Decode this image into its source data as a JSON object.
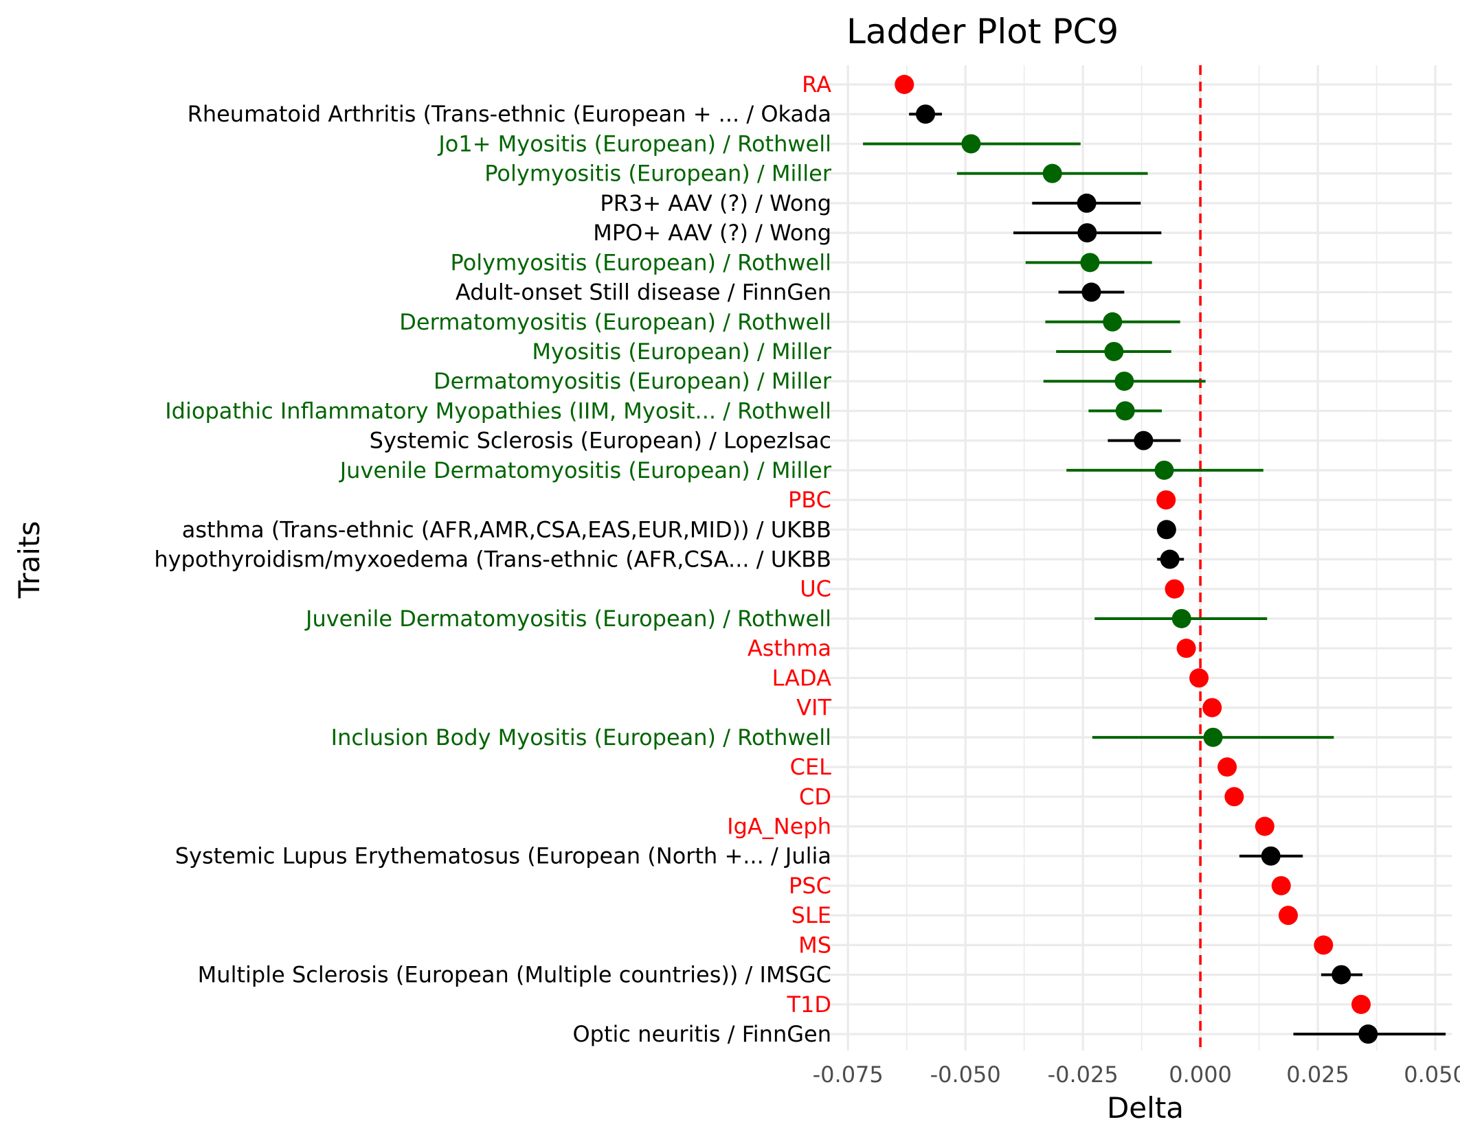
{
  "chart_data": {
    "type": "scatter",
    "title": "Ladder Plot PC9",
    "xlabel": "Delta",
    "ylabel": "Traits",
    "xlim": [
      -0.08,
      0.0535
    ],
    "x_ticks": [
      -0.075,
      -0.05,
      -0.025,
      0.0,
      0.025,
      0.05
    ],
    "x_tick_labels": [
      "-0.075",
      "-0.050",
      "-0.025",
      "0.000",
      "0.025",
      "0.050"
    ],
    "reference_line": {
      "x": 0.0,
      "style": "dashed",
      "color": "#ff0000"
    },
    "grid": true,
    "legend": "none",
    "colors": {
      "red": "#ff0000",
      "green": "#006400",
      "black": "#000000"
    },
    "points": [
      {
        "label": "RA",
        "x": -0.063,
        "lo": null,
        "hi": null,
        "color": "#ff0000"
      },
      {
        "label": "Rheumatoid Arthritis (Trans-ethnic (European + ... / Okada",
        "x": -0.0585,
        "lo": -0.062,
        "hi": -0.055,
        "color": "#000000"
      },
      {
        "label": "Jo1+ Myositis (European) / Rothwell",
        "x": -0.0488,
        "lo": -0.0718,
        "hi": -0.0255,
        "color": "#006400"
      },
      {
        "label": "Polymyositis (European) / Miller",
        "x": -0.0315,
        "lo": -0.0518,
        "hi": -0.0112,
        "color": "#006400"
      },
      {
        "label": "PR3+ AAV (?) / Wong",
        "x": -0.0242,
        "lo": -0.0358,
        "hi": -0.0127,
        "color": "#000000"
      },
      {
        "label": "MPO+ AAV (?) / Wong",
        "x": -0.0241,
        "lo": -0.0398,
        "hi": -0.0083,
        "color": "#000000"
      },
      {
        "label": "Polymyositis (European) / Rothwell",
        "x": -0.0235,
        "lo": -0.0372,
        "hi": -0.0103,
        "color": "#006400"
      },
      {
        "label": "Adult-onset Still disease / FinnGen",
        "x": -0.0232,
        "lo": -0.0302,
        "hi": -0.0162,
        "color": "#000000"
      },
      {
        "label": "Dermatomyositis (European) / Rothwell",
        "x": -0.0187,
        "lo": -0.033,
        "hi": -0.0043,
        "color": "#006400"
      },
      {
        "label": "Myositis (European) / Miller",
        "x": -0.0184,
        "lo": -0.0307,
        "hi": -0.0062,
        "color": "#006400"
      },
      {
        "label": "Dermatomyositis (European) / Miller",
        "x": -0.0162,
        "lo": -0.0334,
        "hi": 0.0011,
        "color": "#006400"
      },
      {
        "label": "Idiopathic Inflammatory Myopathies (IIM, Myosit... / Rothwell",
        "x": -0.016,
        "lo": -0.0238,
        "hi": -0.0082,
        "color": "#006400"
      },
      {
        "label": "Systemic Sclerosis (European) / LopezIsac",
        "x": -0.0121,
        "lo": -0.0197,
        "hi": -0.0042,
        "color": "#000000"
      },
      {
        "label": "Juvenile Dermatomyositis (European) / Miller",
        "x": -0.0077,
        "lo": -0.0285,
        "hi": 0.0134,
        "color": "#006400"
      },
      {
        "label": "PBC",
        "x": -0.0073,
        "lo": null,
        "hi": null,
        "color": "#ff0000"
      },
      {
        "label": "asthma (Trans-ethnic (AFR,AMR,CSA,EAS,EUR,MID)) / UKBB",
        "x": -0.0072,
        "lo": -0.0082,
        "hi": -0.0063,
        "color": "#000000"
      },
      {
        "label": "hypothyroidism/myxoedema (Trans-ethnic (AFR,CSA... / UKBB",
        "x": -0.0065,
        "lo": -0.0092,
        "hi": -0.0035,
        "color": "#000000"
      },
      {
        "label": "UC",
        "x": -0.0055,
        "lo": null,
        "hi": null,
        "color": "#ff0000"
      },
      {
        "label": "Juvenile Dermatomyositis (European) / Rothwell",
        "x": -0.004,
        "lo": -0.0225,
        "hi": 0.0142,
        "color": "#006400"
      },
      {
        "label": "Asthma",
        "x": -0.003,
        "lo": null,
        "hi": null,
        "color": "#ff0000"
      },
      {
        "label": "LADA",
        "x": -0.0003,
        "lo": null,
        "hi": null,
        "color": "#ff0000"
      },
      {
        "label": "VIT",
        "x": 0.0025,
        "lo": null,
        "hi": null,
        "color": "#ff0000"
      },
      {
        "label": "Inclusion Body Myositis (European) / Rothwell",
        "x": 0.0027,
        "lo": -0.023,
        "hi": 0.0284,
        "color": "#006400"
      },
      {
        "label": "CEL",
        "x": 0.0057,
        "lo": null,
        "hi": null,
        "color": "#ff0000"
      },
      {
        "label": "CD",
        "x": 0.0072,
        "lo": null,
        "hi": null,
        "color": "#ff0000"
      },
      {
        "label": "IgA_Neph",
        "x": 0.0137,
        "lo": null,
        "hi": null,
        "color": "#ff0000"
      },
      {
        "label": "Systemic Lupus Erythematosus (European (North +... / Julia",
        "x": 0.015,
        "lo": 0.0083,
        "hi": 0.0218,
        "color": "#000000"
      },
      {
        "label": "PSC",
        "x": 0.0172,
        "lo": null,
        "hi": null,
        "color": "#ff0000"
      },
      {
        "label": "SLE",
        "x": 0.0187,
        "lo": null,
        "hi": null,
        "color": "#ff0000"
      },
      {
        "label": "MS",
        "x": 0.0262,
        "lo": null,
        "hi": null,
        "color": "#ff0000"
      },
      {
        "label": "Multiple Sclerosis (European (Multiple countries)) / IMSGC",
        "x": 0.03,
        "lo": 0.0257,
        "hi": 0.0345,
        "color": "#000000"
      },
      {
        "label": "T1D",
        "x": 0.0342,
        "lo": null,
        "hi": null,
        "color": "#ff0000"
      },
      {
        "label": "Optic neuritis / FinnGen",
        "x": 0.0357,
        "lo": 0.0198,
        "hi": 0.0522,
        "color": "#000000"
      }
    ]
  }
}
